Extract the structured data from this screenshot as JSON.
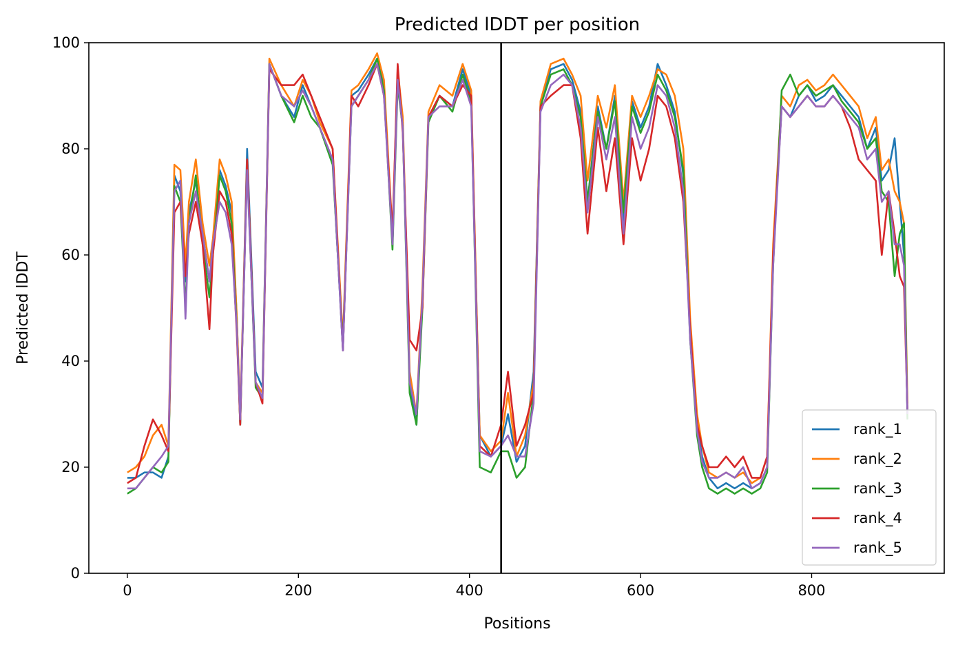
{
  "chart_data": {
    "type": "line",
    "title": "Predicted lDDT per position",
    "xlabel": "Positions",
    "ylabel": "Predicted lDDT",
    "xlim": [
      -45,
      955
    ],
    "ylim": [
      0,
      100
    ],
    "xticks": [
      0,
      200,
      400,
      600,
      800
    ],
    "yticks": [
      0,
      20,
      40,
      60,
      80,
      100
    ],
    "grid": false,
    "legend_position": "lower-right",
    "chain_boundary_x": 437,
    "colors": [
      "#1f77b4",
      "#ff7f0e",
      "#2ca02c",
      "#d62728",
      "#9467bd"
    ],
    "x": [
      0,
      10,
      20,
      30,
      40,
      48,
      55,
      62,
      68,
      72,
      80,
      88,
      96,
      100,
      108,
      115,
      122,
      128,
      132,
      140,
      150,
      158,
      166,
      180,
      195,
      205,
      215,
      225,
      240,
      252,
      262,
      270,
      282,
      292,
      300,
      310,
      316,
      322,
      330,
      338,
      345,
      352,
      365,
      380,
      392,
      402,
      412,
      425,
      437,
      445,
      455,
      465,
      475,
      483,
      495,
      510,
      520,
      530,
      538,
      550,
      560,
      570,
      580,
      590,
      600,
      610,
      620,
      630,
      640,
      650,
      658,
      666,
      672,
      680,
      690,
      700,
      710,
      720,
      730,
      740,
      748,
      755,
      765,
      775,
      785,
      795,
      805,
      815,
      825,
      835,
      845,
      855,
      865,
      875,
      882,
      890,
      897,
      903,
      908,
      912
    ],
    "series": [
      {
        "name": "rank_1",
        "values": [
          18,
          18,
          19,
          19,
          18,
          22,
          75,
          72,
          55,
          68,
          74,
          64,
          55,
          62,
          76,
          73,
          68,
          48,
          28,
          80,
          38,
          35,
          96,
          90,
          86,
          92,
          88,
          84,
          78,
          42,
          90,
          91,
          94,
          97,
          92,
          62,
          94,
          85,
          36,
          28,
          52,
          86,
          90,
          88,
          95,
          90,
          26,
          22,
          24,
          30,
          21,
          24,
          38,
          88,
          95,
          96,
          93,
          87,
          70,
          88,
          80,
          90,
          66,
          89,
          84,
          88,
          96,
          92,
          87,
          75,
          45,
          28,
          22,
          18,
          16,
          17,
          16,
          17,
          16,
          17,
          20,
          60,
          88,
          86,
          90,
          92,
          89,
          90,
          92,
          90,
          88,
          86,
          80,
          84,
          74,
          76,
          82,
          70,
          60,
          30
        ]
      },
      {
        "name": "rank_2",
        "values": [
          19,
          20,
          22,
          26,
          28,
          24,
          77,
          76,
          58,
          70,
          78,
          66,
          58,
          63,
          78,
          75,
          70,
          48,
          30,
          78,
          36,
          34,
          97,
          92,
          88,
          93,
          90,
          85,
          80,
          44,
          91,
          92,
          95,
          98,
          93,
          64,
          95,
          86,
          38,
          30,
          54,
          87,
          92,
          90,
          96,
          91,
          26,
          23,
          25,
          34,
          22,
          26,
          36,
          89,
          96,
          97,
          94,
          90,
          74,
          90,
          84,
          92,
          70,
          90,
          86,
          90,
          95,
          94,
          90,
          80,
          48,
          30,
          24,
          19,
          18,
          19,
          18,
          19,
          17,
          18,
          22,
          62,
          90,
          88,
          92,
          93,
          91,
          92,
          94,
          92,
          90,
          88,
          82,
          86,
          76,
          78,
          72,
          70,
          66,
          32
        ]
      },
      {
        "name": "rank_3",
        "values": [
          15,
          16,
          18,
          20,
          19,
          21,
          73,
          70,
          50,
          66,
          75,
          62,
          52,
          60,
          75,
          72,
          66,
          46,
          28,
          77,
          35,
          33,
          96,
          90,
          85,
          90,
          86,
          84,
          77,
          43,
          88,
          90,
          93,
          97,
          91,
          61,
          92,
          84,
          34,
          28,
          50,
          85,
          90,
          87,
          94,
          89,
          20,
          19,
          23,
          23,
          18,
          20,
          34,
          88,
          94,
          95,
          92,
          86,
          70,
          87,
          80,
          89,
          68,
          88,
          83,
          87,
          94,
          91,
          86,
          76,
          44,
          26,
          20,
          16,
          15,
          16,
          15,
          16,
          15,
          16,
          19,
          58,
          91,
          94,
          90,
          92,
          90,
          91,
          92,
          89,
          87,
          85,
          80,
          82,
          72,
          70,
          56,
          64,
          66,
          29
        ]
      },
      {
        "name": "rank_4",
        "values": [
          17,
          18,
          24,
          29,
          26,
          23,
          68,
          70,
          56,
          64,
          70,
          62,
          46,
          60,
          72,
          70,
          64,
          45,
          28,
          78,
          36,
          32,
          95,
          92,
          92,
          94,
          90,
          86,
          80,
          42,
          90,
          88,
          92,
          96,
          90,
          64,
          96,
          83,
          44,
          42,
          50,
          86,
          90,
          88,
          92,
          90,
          24,
          22,
          28,
          38,
          24,
          28,
          34,
          88,
          90,
          92,
          92,
          82,
          64,
          84,
          72,
          82,
          62,
          82,
          74,
          80,
          90,
          88,
          82,
          70,
          46,
          28,
          24,
          20,
          20,
          22,
          20,
          22,
          18,
          18,
          22,
          60,
          88,
          86,
          88,
          90,
          88,
          88,
          90,
          88,
          84,
          78,
          76,
          74,
          60,
          72,
          64,
          56,
          54,
          31
        ]
      },
      {
        "name": "rank_5",
        "values": [
          16,
          16,
          18,
          20,
          22,
          24,
          72,
          74,
          48,
          66,
          72,
          64,
          55,
          62,
          70,
          68,
          62,
          46,
          29,
          76,
          36,
          33,
          96,
          90,
          88,
          91,
          88,
          84,
          78,
          42,
          88,
          90,
          93,
          96,
          90,
          62,
          93,
          84,
          36,
          30,
          52,
          86,
          88,
          88,
          93,
          88,
          23,
          22,
          24,
          26,
          22,
          22,
          32,
          87,
          92,
          94,
          92,
          84,
          68,
          86,
          78,
          86,
          64,
          86,
          80,
          84,
          92,
          90,
          84,
          72,
          44,
          27,
          21,
          18,
          18,
          19,
          18,
          20,
          16,
          17,
          20,
          58,
          88,
          86,
          88,
          90,
          88,
          88,
          90,
          88,
          86,
          84,
          78,
          80,
          70,
          72,
          62,
          62,
          58,
          30
        ]
      }
    ]
  }
}
